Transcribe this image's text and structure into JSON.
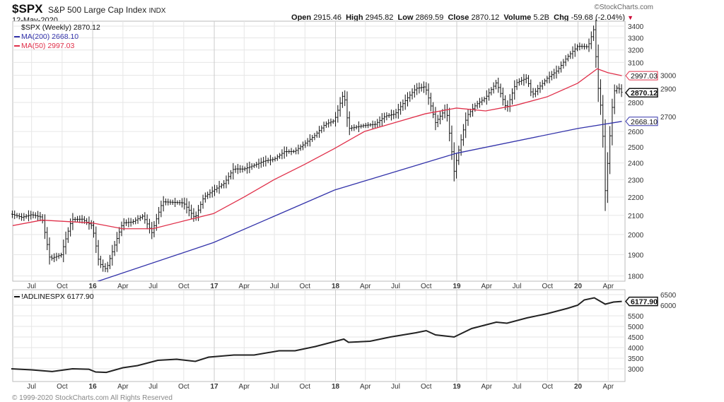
{
  "header": {
    "symbol": "$SPX",
    "name": "S&P 500 Large Cap Index",
    "exchange": "INDX",
    "date": "12-May-2020",
    "watermark": "©StockCharts.com",
    "open_label": "Open",
    "open": "2915.46",
    "high_label": "High",
    "high": "2945.82",
    "low_label": "Low",
    "low": "2869.59",
    "close_label": "Close",
    "close": "2870.12",
    "volume_label": "Volume",
    "volume": "5.2B",
    "chg_label": "Chg",
    "chg": "-59.68 (-2.04%)",
    "chg_color": "#cc0033"
  },
  "footer": "© 1999-2020 StockCharts.com All Rights Reserved",
  "chart_data": [
    {
      "type": "ohlc",
      "title": "$SPX (Weekly) 2870.12",
      "scale": "log",
      "ylim": [
        1800,
        3400
      ],
      "yticks": [
        1800,
        1900,
        2000,
        2100,
        2200,
        2300,
        2400,
        2500,
        2600,
        2700,
        2800,
        2900,
        3000,
        3100,
        3200,
        3300,
        3400
      ],
      "xticks": [
        "Jul",
        "Oct",
        "16",
        "Apr",
        "Jul",
        "Oct",
        "17",
        "Apr",
        "Jul",
        "Oct",
        "18",
        "Apr",
        "Jul",
        "Oct",
        "19",
        "Apr",
        "Jul",
        "Oct",
        "20",
        "Apr"
      ],
      "xrange": [
        "2015-05-01",
        "2020-05-15"
      ],
      "grid": true,
      "price": [
        [
          "2015-05-01",
          2107
        ],
        [
          "2015-06-01",
          2090
        ],
        [
          "2015-07-01",
          2104
        ],
        [
          "2015-08-01",
          2090
        ],
        [
          "2015-08-25",
          1880
        ],
        [
          "2015-09-28",
          1900
        ],
        [
          "2015-10-30",
          2079
        ],
        [
          "2015-11-30",
          2080
        ],
        [
          "2015-12-31",
          2044
        ],
        [
          "2016-01-20",
          1860
        ],
        [
          "2016-02-11",
          1830
        ],
        [
          "2016-03-31",
          2060
        ],
        [
          "2016-04-29",
          2065
        ],
        [
          "2016-05-31",
          2097
        ],
        [
          "2016-06-27",
          2010
        ],
        [
          "2016-07-29",
          2174
        ],
        [
          "2016-08-31",
          2171
        ],
        [
          "2016-09-30",
          2168
        ],
        [
          "2016-11-04",
          2085
        ],
        [
          "2016-11-30",
          2199
        ],
        [
          "2016-12-30",
          2239
        ],
        [
          "2017-01-31",
          2279
        ],
        [
          "2017-02-28",
          2364
        ],
        [
          "2017-03-31",
          2363
        ],
        [
          "2017-04-28",
          2384
        ],
        [
          "2017-05-31",
          2412
        ],
        [
          "2017-06-30",
          2423
        ],
        [
          "2017-07-31",
          2470
        ],
        [
          "2017-08-31",
          2472
        ],
        [
          "2017-09-29",
          2519
        ],
        [
          "2017-10-31",
          2575
        ],
        [
          "2017-11-30",
          2648
        ],
        [
          "2017-12-29",
          2674
        ],
        [
          "2018-01-26",
          2872
        ],
        [
          "2018-02-09",
          2620
        ],
        [
          "2018-03-29",
          2641
        ],
        [
          "2018-04-30",
          2648
        ],
        [
          "2018-05-31",
          2705
        ],
        [
          "2018-06-29",
          2718
        ],
        [
          "2018-07-31",
          2816
        ],
        [
          "2018-08-31",
          2902
        ],
        [
          "2018-09-28",
          2914
        ],
        [
          "2018-10-29",
          2660
        ],
        [
          "2018-11-30",
          2760
        ],
        [
          "2018-12-24",
          2350
        ],
        [
          "2019-01-31",
          2704
        ],
        [
          "2019-02-28",
          2784
        ],
        [
          "2019-03-29",
          2834
        ],
        [
          "2019-04-30",
          2946
        ],
        [
          "2019-05-31",
          2752
        ],
        [
          "2019-06-28",
          2942
        ],
        [
          "2019-07-31",
          2980
        ],
        [
          "2019-08-15",
          2850
        ],
        [
          "2019-09-30",
          2977
        ],
        [
          "2019-10-31",
          3038
        ],
        [
          "2019-11-29",
          3141
        ],
        [
          "2019-12-31",
          3231
        ],
        [
          "2020-01-31",
          3226
        ],
        [
          "2020-02-19",
          3386
        ],
        [
          "2020-02-28",
          2954
        ],
        [
          "2020-03-13",
          2711
        ],
        [
          "2020-03-23",
          2237
        ],
        [
          "2020-04-03",
          2489
        ],
        [
          "2020-04-17",
          2875
        ],
        [
          "2020-04-30",
          2912
        ],
        [
          "2020-05-12",
          2870
        ]
      ],
      "series": [
        {
          "name": "MA(200) 2668.10",
          "color": "#3333aa",
          "last": "2668.10",
          "values": [
            [
              "2016-01-15",
              1775
            ],
            [
              "2016-12-30",
              1960
            ],
            [
              "2017-12-29",
              2240
            ],
            [
              "2018-12-31",
              2460
            ],
            [
              "2019-12-31",
              2620
            ],
            [
              "2020-05-12",
              2668
            ]
          ]
        },
        {
          "name": "MA(50) 2997.03",
          "color": "#e0304a",
          "last": "2997.03",
          "values": [
            [
              "2015-05-01",
              2045
            ],
            [
              "2015-08-01",
              2075
            ],
            [
              "2015-12-31",
              2060
            ],
            [
              "2016-03-31",
              2030
            ],
            [
              "2016-06-30",
              2030
            ],
            [
              "2016-09-30",
              2070
            ],
            [
              "2016-12-30",
              2110
            ],
            [
              "2017-03-31",
              2200
            ],
            [
              "2017-06-30",
              2300
            ],
            [
              "2017-09-29",
              2390
            ],
            [
              "2017-12-29",
              2490
            ],
            [
              "2018-03-29",
              2600
            ],
            [
              "2018-06-29",
              2660
            ],
            [
              "2018-09-28",
              2720
            ],
            [
              "2018-12-31",
              2760
            ],
            [
              "2019-03-29",
              2740
            ],
            [
              "2019-06-28",
              2780
            ],
            [
              "2019-09-30",
              2840
            ],
            [
              "2019-12-31",
              2940
            ],
            [
              "2020-02-28",
              3050
            ],
            [
              "2020-03-31",
              3020
            ],
            [
              "2020-05-12",
              2997
            ]
          ]
        }
      ],
      "last_label": "2870.12"
    },
    {
      "type": "line",
      "title": "!ADLINESPX 6177.90",
      "ylim": [
        2600,
        6700
      ],
      "yticks": [
        3000,
        3500,
        4000,
        4500,
        5000,
        5500,
        6000,
        6500
      ],
      "last_label": "6177.90",
      "grid": true,
      "xticks": [
        "Jul",
        "Oct",
        "16",
        "Apr",
        "Jul",
        "Oct",
        "17",
        "Apr",
        "Jul",
        "Oct",
        "18",
        "Apr",
        "Jul",
        "Oct",
        "19",
        "Apr",
        "Jul",
        "Oct",
        "20",
        "Apr"
      ],
      "values": [
        [
          "2015-05-01",
          3000
        ],
        [
          "2015-07-01",
          2950
        ],
        [
          "2015-09-01",
          2870
        ],
        [
          "2015-11-01",
          3000
        ],
        [
          "2015-12-20",
          2980
        ],
        [
          "2016-01-10",
          2850
        ],
        [
          "2016-02-11",
          2830
        ],
        [
          "2016-04-01",
          3050
        ],
        [
          "2016-05-15",
          3150
        ],
        [
          "2016-07-15",
          3400
        ],
        [
          "2016-09-10",
          3450
        ],
        [
          "2016-11-05",
          3350
        ],
        [
          "2016-12-15",
          3550
        ],
        [
          "2017-03-01",
          3650
        ],
        [
          "2017-05-01",
          3650
        ],
        [
          "2017-07-15",
          3850
        ],
        [
          "2017-09-01",
          3850
        ],
        [
          "2017-11-01",
          4050
        ],
        [
          "2018-01-26",
          4400
        ],
        [
          "2018-02-09",
          4250
        ],
        [
          "2018-04-15",
          4300
        ],
        [
          "2018-06-15",
          4500
        ],
        [
          "2018-08-31",
          4700
        ],
        [
          "2018-10-01",
          4800
        ],
        [
          "2018-10-29",
          4600
        ],
        [
          "2018-12-24",
          4500
        ],
        [
          "2019-02-15",
          4900
        ],
        [
          "2019-04-30",
          5200
        ],
        [
          "2019-06-01",
          5150
        ],
        [
          "2019-07-31",
          5400
        ],
        [
          "2019-09-30",
          5600
        ],
        [
          "2019-11-30",
          5850
        ],
        [
          "2019-12-31",
          6000
        ],
        [
          "2020-01-20",
          6250
        ],
        [
          "2020-02-19",
          6350
        ],
        [
          "2020-03-23",
          6050
        ],
        [
          "2020-04-17",
          6150
        ],
        [
          "2020-05-12",
          6178
        ]
      ]
    }
  ]
}
